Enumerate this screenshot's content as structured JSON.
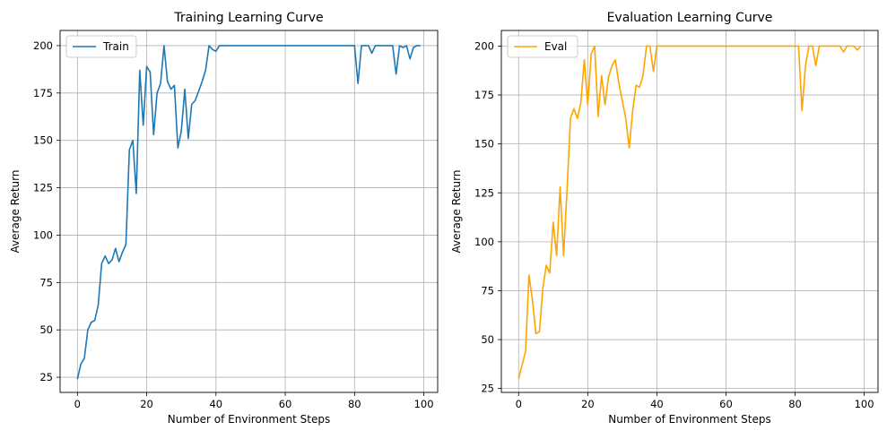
{
  "chart_data": [
    {
      "type": "line",
      "title": "Training Learning Curve",
      "xlabel": "Number of Environment Steps",
      "ylabel": "Average Return",
      "xlim": [
        -5,
        104
      ],
      "ylim": [
        17,
        208
      ],
      "xticks": [
        0,
        20,
        40,
        60,
        80,
        100
      ],
      "yticks": [
        25,
        50,
        75,
        100,
        125,
        150,
        175,
        200
      ],
      "grid": true,
      "legend_position": "top-left",
      "series": [
        {
          "name": "Train",
          "color": "#1f77b4",
          "x": [
            0,
            1,
            2,
            3,
            4,
            5,
            6,
            7,
            8,
            9,
            10,
            11,
            12,
            13,
            14,
            15,
            16,
            17,
            18,
            19,
            20,
            21,
            22,
            23,
            24,
            25,
            26,
            27,
            28,
            29,
            30,
            31,
            32,
            33,
            34,
            35,
            36,
            37,
            38,
            39,
            40,
            41,
            42,
            43,
            44,
            45,
            46,
            47,
            48,
            49,
            50,
            51,
            52,
            53,
            54,
            55,
            56,
            57,
            58,
            59,
            60,
            61,
            62,
            63,
            64,
            65,
            66,
            67,
            68,
            69,
            70,
            71,
            72,
            73,
            74,
            75,
            76,
            77,
            78,
            79,
            80,
            81,
            82,
            83,
            84,
            85,
            86,
            87,
            88,
            89,
            90,
            91,
            92,
            93,
            94,
            95,
            96,
            97,
            98,
            99
          ],
          "y": [
            24,
            32,
            35,
            50,
            54,
            55,
            63,
            85,
            89,
            85,
            87,
            93,
            86,
            91,
            95,
            145,
            150,
            122,
            187,
            158,
            189,
            186,
            153,
            175,
            180,
            200,
            181,
            177,
            179,
            146,
            155,
            177,
            151,
            169,
            171,
            176,
            181,
            187,
            200,
            198,
            197,
            200,
            200,
            200,
            200,
            200,
            200,
            200,
            200,
            200,
            200,
            200,
            200,
            200,
            200,
            200,
            200,
            200,
            200,
            200,
            200,
            200,
            200,
            200,
            200,
            200,
            200,
            200,
            200,
            200,
            200,
            200,
            200,
            200,
            200,
            200,
            200,
            200,
            200,
            200,
            200,
            180,
            200,
            200,
            200,
            196,
            200,
            200,
            200,
            200,
            200,
            200,
            185,
            200,
            199,
            200,
            193,
            199,
            200,
            200
          ]
        }
      ]
    },
    {
      "type": "line",
      "title": "Evaluation Learning Curve",
      "xlabel": "Number of Environment Steps",
      "ylabel": "Average Return",
      "xlim": [
        -5,
        104
      ],
      "ylim": [
        23,
        208
      ],
      "xticks": [
        0,
        20,
        40,
        60,
        80,
        100
      ],
      "yticks": [
        25,
        50,
        75,
        100,
        125,
        150,
        175,
        200
      ],
      "grid": true,
      "legend_position": "top-left",
      "series": [
        {
          "name": "Eval",
          "color": "#ffa500",
          "x": [
            0,
            1,
            2,
            3,
            4,
            5,
            6,
            7,
            8,
            9,
            10,
            11,
            12,
            13,
            14,
            15,
            16,
            17,
            18,
            19,
            20,
            21,
            22,
            23,
            24,
            25,
            26,
            27,
            28,
            29,
            30,
            31,
            32,
            33,
            34,
            35,
            36,
            37,
            38,
            39,
            40,
            41,
            42,
            43,
            44,
            45,
            46,
            47,
            48,
            49,
            50,
            51,
            52,
            53,
            54,
            55,
            56,
            57,
            58,
            59,
            60,
            61,
            62,
            63,
            64,
            65,
            66,
            67,
            68,
            69,
            70,
            71,
            72,
            73,
            74,
            75,
            76,
            77,
            78,
            79,
            80,
            81,
            82,
            83,
            84,
            85,
            86,
            87,
            88,
            89,
            90,
            91,
            92,
            93,
            94,
            95,
            96,
            97,
            98,
            99
          ],
          "y": [
            30,
            37,
            44,
            83,
            70,
            53,
            54,
            76,
            88,
            84,
            110,
            93,
            128,
            93,
            126,
            163,
            168,
            163,
            171,
            193,
            170,
            196,
            200,
            164,
            185,
            170,
            184,
            190,
            193,
            181,
            172,
            163,
            148,
            167,
            180,
            179,
            185,
            200,
            200,
            187,
            200,
            200,
            200,
            200,
            200,
            200,
            200,
            200,
            200,
            200,
            200,
            200,
            200,
            200,
            200,
            200,
            200,
            200,
            200,
            200,
            200,
            200,
            200,
            200,
            200,
            200,
            200,
            200,
            200,
            200,
            200,
            200,
            200,
            200,
            200,
            200,
            200,
            200,
            200,
            200,
            200,
            200,
            167,
            190,
            200,
            200,
            190,
            200,
            200,
            200,
            200,
            200,
            200,
            200,
            197,
            200,
            200,
            200,
            198,
            200
          ]
        }
      ]
    }
  ]
}
